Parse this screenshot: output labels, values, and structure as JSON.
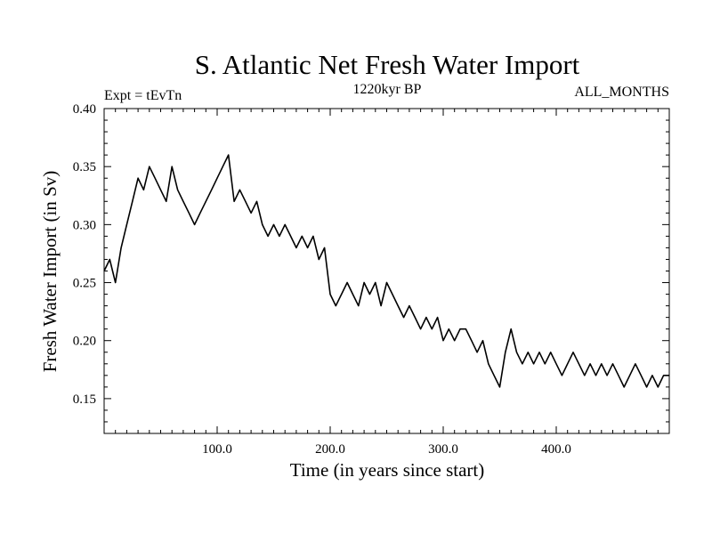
{
  "chart_data": {
    "type": "line",
    "title": "S. Atlantic Net Fresh Water Import",
    "subtitle_left": "Expt = tEvTn",
    "subtitle_center": "1220kyr BP",
    "subtitle_right": "ALL_MONTHS",
    "xlabel": "Time (in years since start)",
    "ylabel": "Fresh Water Import (in Sv)",
    "xlim": [
      0,
      500
    ],
    "ylim": [
      0.12,
      0.4
    ],
    "x_ticks": [
      100,
      200,
      300,
      400
    ],
    "x_tick_labels": [
      "100.0",
      "200.0",
      "300.0",
      "400.0"
    ],
    "y_ticks": [
      0.15,
      0.2,
      0.25,
      0.3,
      0.35,
      0.4
    ],
    "y_tick_labels": [
      "0.15",
      "0.20",
      "0.25",
      "0.30",
      "0.35",
      "0.40"
    ],
    "grid": false,
    "line_color": "#000000",
    "series": [
      {
        "name": "Fresh Water Import",
        "x": [
          0,
          5,
          10,
          15,
          20,
          25,
          30,
          35,
          40,
          45,
          50,
          55,
          60,
          65,
          70,
          75,
          80,
          85,
          90,
          95,
          100,
          105,
          110,
          115,
          120,
          125,
          130,
          135,
          140,
          145,
          150,
          155,
          160,
          165,
          170,
          175,
          180,
          185,
          190,
          195,
          200,
          205,
          210,
          215,
          220,
          225,
          230,
          235,
          240,
          245,
          250,
          255,
          260,
          265,
          270,
          275,
          280,
          285,
          290,
          295,
          300,
          305,
          310,
          315,
          320,
          325,
          330,
          335,
          340,
          345,
          350,
          355,
          360,
          365,
          370,
          375,
          380,
          385,
          390,
          395,
          400,
          405,
          410,
          415,
          420,
          425,
          430,
          435,
          440,
          445,
          450,
          455,
          460,
          465,
          470,
          475,
          480,
          485,
          490,
          495,
          500
        ],
        "values": [
          0.26,
          0.27,
          0.25,
          0.28,
          0.3,
          0.32,
          0.34,
          0.33,
          0.35,
          0.34,
          0.33,
          0.32,
          0.35,
          0.33,
          0.32,
          0.31,
          0.3,
          0.31,
          0.32,
          0.33,
          0.34,
          0.35,
          0.36,
          0.32,
          0.33,
          0.32,
          0.31,
          0.32,
          0.3,
          0.29,
          0.3,
          0.29,
          0.3,
          0.29,
          0.28,
          0.29,
          0.28,
          0.29,
          0.27,
          0.28,
          0.24,
          0.23,
          0.24,
          0.25,
          0.24,
          0.23,
          0.25,
          0.24,
          0.25,
          0.23,
          0.25,
          0.24,
          0.23,
          0.22,
          0.23,
          0.22,
          0.21,
          0.22,
          0.21,
          0.22,
          0.2,
          0.21,
          0.2,
          0.21,
          0.21,
          0.2,
          0.19,
          0.2,
          0.18,
          0.17,
          0.16,
          0.19,
          0.21,
          0.19,
          0.18,
          0.19,
          0.18,
          0.19,
          0.18,
          0.19,
          0.18,
          0.17,
          0.18,
          0.19,
          0.18,
          0.17,
          0.18,
          0.17,
          0.18,
          0.17,
          0.18,
          0.17,
          0.16,
          0.17,
          0.18,
          0.17,
          0.16,
          0.17,
          0.16,
          0.17,
          0.17
        ]
      }
    ]
  }
}
